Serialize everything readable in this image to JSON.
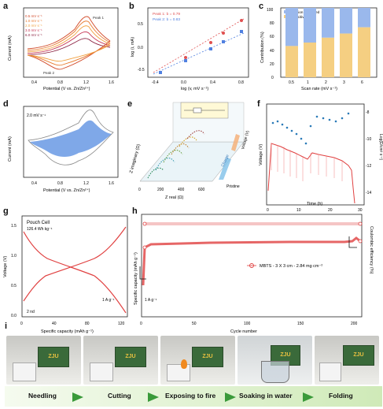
{
  "panels": {
    "a": {
      "label": "a",
      "xlabel": "Potential (V vs. Zn/Zn²⁺)",
      "ylabel": "Current (mA)",
      "legend": [
        "0.5 mV s⁻¹",
        "1.0 mV s⁻¹",
        "2.0 mV s⁻¹",
        "3.0 mV s⁻¹",
        "6.0 mV s⁻¹"
      ],
      "peak1": "Peak 1",
      "peak2": "Peak 2",
      "xticks": [
        "0.4",
        "0.8",
        "1.2",
        "1.6"
      ]
    },
    "b": {
      "label": "b",
      "xlabel": "log (v, mV s⁻¹)",
      "ylabel": "log (i, mA)",
      "legend": [
        "Peak 1: b = 0.79",
        "Peak 2: b = 0.83"
      ],
      "xticks": [
        "-0.4",
        "0.0",
        "0.4",
        "0.8"
      ],
      "yticks": [
        "-0.5",
        "0.0",
        "0.5"
      ]
    },
    "c": {
      "label": "c",
      "xlabel": "Scan rate (mV s⁻¹)",
      "ylabel": "Contribution (%)",
      "legend": [
        "Diffusion controlled",
        "Capacitive"
      ],
      "categories": [
        "0.5",
        "1",
        "2",
        "3",
        "6"
      ],
      "capacitive": [
        45,
        50,
        57,
        63,
        72
      ],
      "yticks": [
        "0",
        "20",
        "40",
        "60",
        "80",
        "100"
      ]
    },
    "d": {
      "label": "d",
      "xlabel": "Potential (V vs. Zn/Zn²⁺)",
      "ylabel": "Current (mA)",
      "rate": "2.0 mV s⁻¹",
      "xticks": [
        "0.4",
        "0.8",
        "1.2",
        "1.6"
      ]
    },
    "e": {
      "label": "e",
      "xlabel": "Z real (Ω)",
      "ylabel": "Z imaginary (Ω)",
      "zlabel": "Voltage (V)",
      "charge": "Charge",
      "pristine": "Pristine",
      "xticks": [
        "0",
        "200",
        "400",
        "600"
      ]
    },
    "f": {
      "label": "f",
      "xlabel": "Time (h)",
      "ylabel": "Voltage (V)",
      "y2label": "Log(D/cm² s⁻¹)",
      "xticks": [
        "0",
        "10",
        "20",
        "30"
      ],
      "y2ticks": [
        "-8",
        "-10",
        "-12",
        "-14"
      ]
    },
    "g": {
      "label": "g",
      "xlabel": "Specific capacity (mAh g⁻¹)",
      "ylabel": "Voltage (V)",
      "title": "Pouch Cell",
      "energy": "126.4 Wh kg⁻¹",
      "cycle": "2 nd",
      "rate": "1 A g⁻¹",
      "xticks": [
        "0",
        "40",
        "80",
        "120"
      ],
      "yticks": [
        "0.0",
        "0.5",
        "1.0",
        "1.5"
      ]
    },
    "h": {
      "label": "h",
      "xlabel": "Cycle number",
      "ylabel": "Specific capacity (mAh g⁻¹)",
      "y2label": "Coulombic efficiency (%)",
      "legend": "MBTS - 3 X 3 cm - 2.84 mg cm⁻²",
      "rate": "1 A g⁻¹",
      "xticks": [
        "0",
        "50",
        "100",
        "150",
        "200"
      ]
    },
    "i": {
      "label": "i",
      "steps": [
        "Needling",
        "Cutting",
        "Exposing to fire",
        "Soaking in water",
        "Folding"
      ],
      "badge": "ZJU"
    }
  },
  "chart_data": [
    {
      "type": "bar",
      "panel": "c",
      "categories": [
        "0.5",
        "1",
        "2",
        "3",
        "6"
      ],
      "series": [
        {
          "name": "Capacitive",
          "values": [
            45,
            50,
            57,
            63,
            72
          ]
        },
        {
          "name": "Diffusion controlled",
          "values": [
            55,
            50,
            43,
            37,
            28
          ]
        }
      ],
      "ylim": [
        0,
        100
      ]
    },
    {
      "type": "scatter",
      "panel": "b",
      "series": [
        {
          "name": "Peak 1: b = 0.79",
          "x": [
            -0.3,
            0.0,
            0.3,
            0.48,
            0.78
          ],
          "y": [
            -0.28,
            -0.02,
            0.2,
            0.36,
            0.55
          ]
        },
        {
          "name": "Peak 2: b = 0.83",
          "x": [
            -0.3,
            0.0,
            0.3,
            0.48,
            0.78
          ],
          "y": [
            -0.3,
            -0.08,
            0.12,
            0.24,
            0.44
          ]
        }
      ],
      "xlim": [
        -0.4,
        0.8
      ],
      "ylim": [
        -0.5,
        0.7
      ]
    },
    {
      "type": "line",
      "panel": "h",
      "series": [
        {
          "name": "Specific capacity",
          "x": [
            0,
            2,
            5,
            10,
            50,
            100,
            150,
            180,
            190,
            195,
            200
          ],
          "y": [
            40,
            75,
            120,
            122,
            124,
            125,
            126,
            126,
            130,
            125,
            126
          ]
        },
        {
          "name": "Coulombic efficiency",
          "x": [
            0,
            5,
            50,
            100,
            150,
            190,
            200
          ],
          "y": [
            96,
            99,
            99,
            99,
            99,
            100,
            100
          ]
        }
      ]
    }
  ]
}
